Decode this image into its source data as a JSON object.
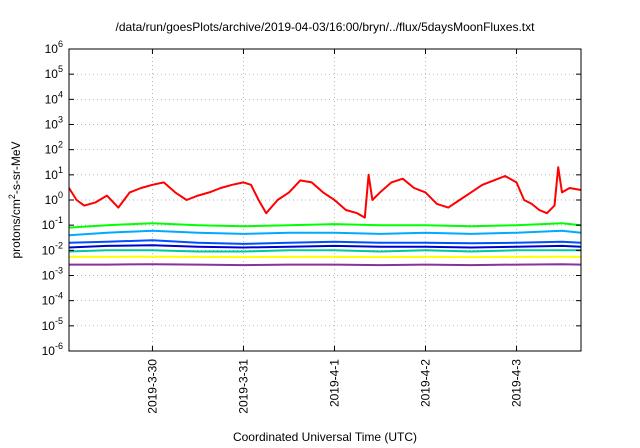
{
  "chart_data": {
    "type": "line",
    "title": "/data/run/goesPlots/archive/2019-04-03/16:00/bryn/../flux/5daysMoonFluxes.txt",
    "xlabel": "Coordinated Universal Time (UTC)",
    "ylabel": "protons/cm²-s-sr-MeV",
    "yscale": "log",
    "ylim": [
      1e-06,
      1000000.0
    ],
    "y_ticks": [
      {
        "value": 1000000.0,
        "label": "10^6"
      },
      {
        "value": 100000.0,
        "label": "10^5"
      },
      {
        "value": 10000.0,
        "label": "10^4"
      },
      {
        "value": 1000.0,
        "label": "10^3"
      },
      {
        "value": 100.0,
        "label": "10^2"
      },
      {
        "value": 10.0,
        "label": "10^1"
      },
      {
        "value": 1.0,
        "label": "10^0"
      },
      {
        "value": 0.1,
        "label": "10^-1"
      },
      {
        "value": 0.01,
        "label": "10^-2"
      },
      {
        "value": 0.001,
        "label": "10^-3"
      },
      {
        "value": 0.0001,
        "label": "10^-4"
      },
      {
        "value": 1e-05,
        "label": "10^-5"
      },
      {
        "value": 1e-06,
        "label": "10^-6"
      }
    ],
    "xlim": [
      "2019-03-29T02:00",
      "2019-04-03T17:00"
    ],
    "x_ticks": [
      {
        "value": "2019-03-30T00:00",
        "label": "2019-3-30"
      },
      {
        "value": "2019-03-31T00:00",
        "label": "2019-3-31"
      },
      {
        "value": "2019-04-01T00:00",
        "label": "2019-4-1"
      },
      {
        "value": "2019-04-02T00:00",
        "label": "2019-4-2"
      },
      {
        "value": "2019-04-03T00:00",
        "label": "2019-4-3"
      }
    ],
    "grid": true,
    "series": [
      {
        "color": "#ff0000",
        "x": [
          "2019-03-29T02:00",
          "2019-03-29T04:00",
          "2019-03-29T06:00",
          "2019-03-29T09:00",
          "2019-03-29T12:00",
          "2019-03-29T15:00",
          "2019-03-29T18:00",
          "2019-03-29T21:00",
          "2019-03-30T00:00",
          "2019-03-30T03:00",
          "2019-03-30T06:00",
          "2019-03-30T09:00",
          "2019-03-30T12:00",
          "2019-03-30T15:00",
          "2019-03-30T18:00",
          "2019-03-30T21:00",
          "2019-03-31T00:00",
          "2019-03-31T02:00",
          "2019-03-31T04:00",
          "2019-03-31T06:00",
          "2019-03-31T09:00",
          "2019-03-31T12:00",
          "2019-03-31T15:00",
          "2019-03-31T18:00",
          "2019-03-31T21:00",
          "2019-04-01T00:00",
          "2019-04-01T03:00",
          "2019-04-01T06:00",
          "2019-04-01T08:00",
          "2019-04-01T09:00",
          "2019-04-01T10:00",
          "2019-04-01T12:00",
          "2019-04-01T15:00",
          "2019-04-01T18:00",
          "2019-04-01T21:00",
          "2019-04-02T00:00",
          "2019-04-02T03:00",
          "2019-04-02T06:00",
          "2019-04-02T09:00",
          "2019-04-02T12:00",
          "2019-04-02T15:00",
          "2019-04-02T18:00",
          "2019-04-02T21:00",
          "2019-04-03T00:00",
          "2019-04-03T02:00",
          "2019-04-03T04:00",
          "2019-04-03T06:00",
          "2019-04-03T08:00",
          "2019-04-03T10:00",
          "2019-04-03T11:00",
          "2019-04-03T12:00",
          "2019-04-03T14:00",
          "2019-04-03T17:00"
        ],
        "values": [
          3,
          1,
          0.6,
          0.8,
          1.5,
          0.5,
          2,
          3,
          4,
          5,
          2,
          1,
          1.5,
          2,
          3,
          4,
          5,
          4,
          1,
          0.3,
          1,
          2,
          6,
          5,
          2,
          1,
          0.4,
          0.3,
          0.2,
          10,
          1,
          2,
          5,
          7,
          3,
          2,
          0.7,
          0.5,
          1,
          2,
          4,
          6,
          9,
          5,
          1,
          0.7,
          0.4,
          0.3,
          0.6,
          20,
          2,
          3,
          2.5
        ]
      },
      {
        "color": "#00ff00",
        "x": [
          "2019-03-29T02:00",
          "2019-03-29T12:00",
          "2019-03-30T00:00",
          "2019-03-30T12:00",
          "2019-03-31T00:00",
          "2019-03-31T12:00",
          "2019-04-01T00:00",
          "2019-04-01T12:00",
          "2019-04-02T00:00",
          "2019-04-02T12:00",
          "2019-04-03T00:00",
          "2019-04-03T12:00",
          "2019-04-03T17:00"
        ],
        "values": [
          0.08,
          0.1,
          0.12,
          0.1,
          0.09,
          0.1,
          0.11,
          0.1,
          0.1,
          0.09,
          0.1,
          0.12,
          0.1
        ]
      },
      {
        "color": "#00aaff",
        "x": [
          "2019-03-29T02:00",
          "2019-03-29T12:00",
          "2019-03-30T00:00",
          "2019-03-30T12:00",
          "2019-03-31T00:00",
          "2019-03-31T12:00",
          "2019-04-01T00:00",
          "2019-04-01T12:00",
          "2019-04-02T00:00",
          "2019-04-02T12:00",
          "2019-04-03T00:00",
          "2019-04-03T12:00",
          "2019-04-03T17:00"
        ],
        "values": [
          0.04,
          0.05,
          0.06,
          0.05,
          0.045,
          0.05,
          0.05,
          0.045,
          0.05,
          0.045,
          0.05,
          0.06,
          0.05
        ]
      },
      {
        "color": "#0050ff",
        "x": [
          "2019-03-29T02:00",
          "2019-03-29T12:00",
          "2019-03-30T00:00",
          "2019-03-30T12:00",
          "2019-03-31T00:00",
          "2019-03-31T12:00",
          "2019-04-01T00:00",
          "2019-04-01T12:00",
          "2019-04-02T00:00",
          "2019-04-02T12:00",
          "2019-04-03T00:00",
          "2019-04-03T12:00",
          "2019-04-03T17:00"
        ],
        "values": [
          0.02,
          0.022,
          0.025,
          0.02,
          0.018,
          0.02,
          0.022,
          0.02,
          0.02,
          0.019,
          0.02,
          0.022,
          0.02
        ]
      },
      {
        "color": "#0000cc",
        "x": [
          "2019-03-29T02:00",
          "2019-03-29T12:00",
          "2019-03-30T00:00",
          "2019-03-30T12:00",
          "2019-03-31T00:00",
          "2019-03-31T12:00",
          "2019-04-01T00:00",
          "2019-04-01T12:00",
          "2019-04-02T00:00",
          "2019-04-02T12:00",
          "2019-04-03T00:00",
          "2019-04-03T12:00",
          "2019-04-03T17:00"
        ],
        "values": [
          0.013,
          0.015,
          0.016,
          0.014,
          0.013,
          0.014,
          0.015,
          0.014,
          0.014,
          0.013,
          0.014,
          0.015,
          0.014
        ]
      },
      {
        "color": "#00c8a0",
        "x": [
          "2019-03-29T02:00",
          "2019-03-29T12:00",
          "2019-03-30T00:00",
          "2019-03-30T12:00",
          "2019-03-31T00:00",
          "2019-03-31T12:00",
          "2019-04-01T00:00",
          "2019-04-01T12:00",
          "2019-04-02T00:00",
          "2019-04-02T12:00",
          "2019-04-03T00:00",
          "2019-04-03T12:00",
          "2019-04-03T17:00"
        ],
        "values": [
          0.009,
          0.01,
          0.01,
          0.009,
          0.009,
          0.01,
          0.01,
          0.009,
          0.01,
          0.009,
          0.01,
          0.01,
          0.01
        ]
      },
      {
        "color": "#ffff00",
        "x": [
          "2019-03-29T02:00",
          "2019-03-29T12:00",
          "2019-03-30T00:00",
          "2019-03-30T12:00",
          "2019-03-31T00:00",
          "2019-03-31T12:00",
          "2019-04-01T00:00",
          "2019-04-01T12:00",
          "2019-04-02T00:00",
          "2019-04-02T12:00",
          "2019-04-03T00:00",
          "2019-04-03T12:00",
          "2019-04-03T17:00"
        ],
        "values": [
          0.0055,
          0.0055,
          0.0056,
          0.0055,
          0.0054,
          0.0055,
          0.0055,
          0.0054,
          0.0055,
          0.0054,
          0.0055,
          0.0056,
          0.0055
        ]
      },
      {
        "color": "#883399",
        "x": [
          "2019-03-29T02:00",
          "2019-03-29T12:00",
          "2019-03-30T00:00",
          "2019-03-30T12:00",
          "2019-03-31T00:00",
          "2019-03-31T12:00",
          "2019-04-01T00:00",
          "2019-04-01T12:00",
          "2019-04-02T00:00",
          "2019-04-02T12:00",
          "2019-04-03T00:00",
          "2019-04-03T12:00",
          "2019-04-03T17:00"
        ],
        "values": [
          0.0027,
          0.0027,
          0.0028,
          0.0027,
          0.0026,
          0.0027,
          0.0027,
          0.0026,
          0.0027,
          0.0026,
          0.0027,
          0.0028,
          0.0027
        ]
      }
    ]
  }
}
